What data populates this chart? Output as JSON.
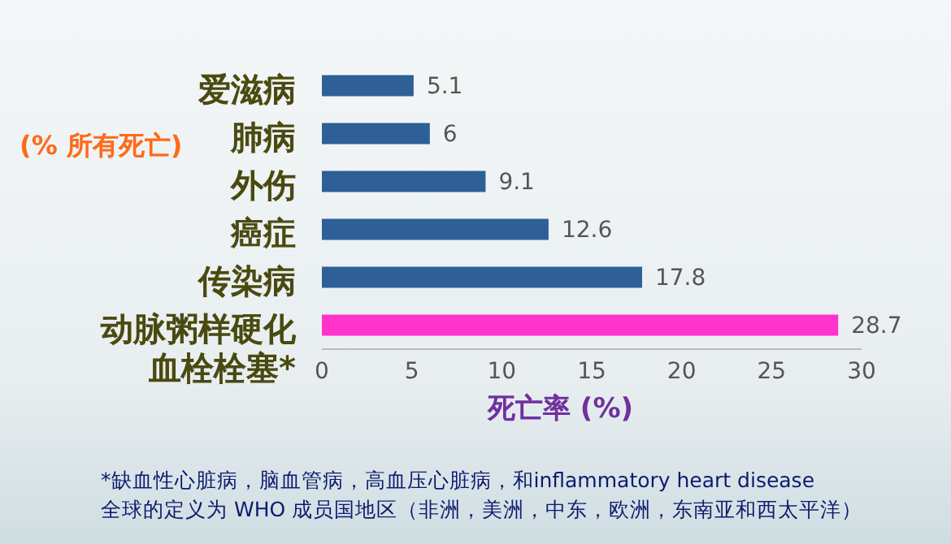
{
  "chart_data": {
    "type": "bar",
    "orientation": "horizontal",
    "categories": [
      "爱滋病",
      "肺病",
      "外伤",
      "癌症",
      "传染病",
      "动脉粥样硬化血栓栓塞*"
    ],
    "values": [
      5.1,
      6,
      9.1,
      12.6,
      17.8,
      28.7
    ],
    "colors": [
      "#2e5f97",
      "#2e5f97",
      "#2e5f97",
      "#2e5f97",
      "#2e5f97",
      "#ff33cc"
    ],
    "xlim": [
      0,
      30
    ],
    "xticks": [
      0,
      5,
      10,
      15,
      20,
      25,
      30
    ],
    "xlabel": "死亡率 (%)",
    "ylabel": "(% 所有死亡)",
    "data_labels": true,
    "grid": false,
    "legend": false,
    "annotations": [
      "*缺血性心脏病，脑血管病，高血压心脏病，和inflammatory heart disease",
      "全球的定义为 WHO 成员国地区（非洲，美洲，中东，欧洲，东南亚和西太平洋）"
    ]
  }
}
